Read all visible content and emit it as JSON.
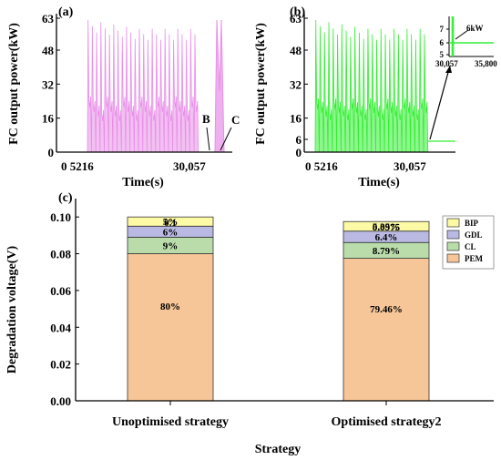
{
  "panels": {
    "a": {
      "label": "(a)",
      "ylabel": "FC output power(kW)",
      "xlabel": "Time(s)",
      "yticks": [
        "0",
        "16",
        "32",
        "48",
        "63"
      ],
      "ytick_values": [
        0,
        16,
        32,
        48,
        63
      ],
      "xticks": [
        "0 5216",
        "30,057"
      ],
      "annotations": [
        "B",
        "C"
      ],
      "color": "#e88ee8"
    },
    "b": {
      "label": "(b)",
      "ylabel": "FC output power(kW)",
      "xlabel": "Time(s)",
      "yticks": [
        "0",
        "6",
        "16",
        "32",
        "48",
        "63"
      ],
      "ytick_values": [
        0,
        6,
        16,
        32,
        48,
        63
      ],
      "xticks": [
        "0 5216",
        "30,057"
      ],
      "color": "#33ee33",
      "inset": {
        "yticks": [
          "5",
          "6",
          "7"
        ],
        "xticks": [
          "30,057",
          "35,800"
        ],
        "annotation": "6kW"
      }
    }
  },
  "chart_data": {
    "type": "bar",
    "stacked": true,
    "panel_label": "(c)",
    "categories": [
      "Unoptimised strategy",
      "Optimised strategy2"
    ],
    "xlabel": "Strategy",
    "ylabel": "Degradation voltage(V)",
    "ylim": [
      0,
      0.11
    ],
    "yticks": [
      "0.00",
      "0.02",
      "0.04",
      "0.06",
      "0.08",
      "0.10"
    ],
    "ytick_values": [
      0,
      0.02,
      0.04,
      0.06,
      0.08,
      0.1
    ],
    "totals": [
      0.1,
      0.0975
    ],
    "total_labels": [
      "0.1",
      "0.0975"
    ],
    "legend_position": "top-right",
    "series": [
      {
        "name": "PEM",
        "color": "#f6c598",
        "values": [
          0.08,
          0.0775
        ],
        "labels": [
          "80%",
          "79.46%"
        ]
      },
      {
        "name": "CL",
        "color": "#b9dcaa",
        "values": [
          0.009,
          0.0086
        ],
        "labels": [
          "9%",
          "8.79%"
        ]
      },
      {
        "name": "GDL",
        "color": "#b9b9e3",
        "values": [
          0.006,
          0.0062
        ],
        "labels": [
          "6%",
          "6.4%"
        ]
      },
      {
        "name": "BIP",
        "color": "#fdfaa6",
        "values": [
          0.005,
          0.0052
        ],
        "labels": [
          "5%",
          "5.35%"
        ]
      }
    ]
  }
}
